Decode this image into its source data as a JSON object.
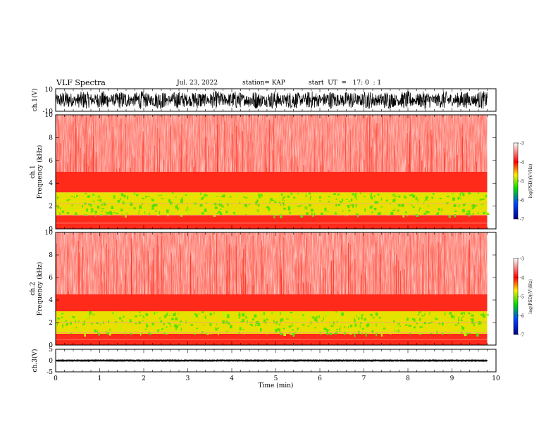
{
  "header": {
    "title": "VLF Spectra",
    "date": "Jul. 23, 2022",
    "station": "station= KAP",
    "start": "start  UT  =   17: 0  : 1"
  },
  "colors": {
    "waveform": "#000000",
    "spectrogram_low": "#ffffff",
    "spectrogram_mid": "#ff2a1a",
    "spectrogram_high": "#58e000",
    "colorbar_stops": [
      "#000088",
      "#0044ff",
      "#00dd00",
      "#ffee00",
      "#ff0000",
      "#ffffff"
    ]
  },
  "chart_data": [
    {
      "type": "line",
      "panel": "ch1-waveform",
      "ylabel": "ch.1(V)",
      "ylim": [
        -10,
        10
      ],
      "yticks": [
        "10",
        "-10"
      ],
      "xlim": [
        0,
        10
      ],
      "description_of_signal": "noisy waveform roughly between -8 and 8 V",
      "approx_range": [
        -8,
        8
      ]
    },
    {
      "type": "heatmap",
      "panel": "ch1-spectrogram",
      "ylabel": "ch.1\nFrequency (kHz)",
      "ylim": [
        0,
        10
      ],
      "yticks": [
        "0",
        "2",
        "4",
        "6",
        "8",
        "10"
      ],
      "xlim": [
        0,
        9.8
      ],
      "colorbar": {
        "label": "log(PSD)(V²/Hz)",
        "range": [
          -7,
          -3
        ],
        "ticks": [
          "-3",
          "-4",
          "-5",
          "-6",
          "-7"
        ]
      },
      "bands": [
        {
          "freq_khz": [
            0,
            1.2
          ],
          "level": -4.0
        },
        {
          "freq_khz": [
            1.2,
            3.2
          ],
          "level": -4.8
        },
        {
          "freq_khz": [
            3.2,
            5.0
          ],
          "level": -4.0
        },
        {
          "freq_khz": [
            5.0,
            10.0
          ],
          "level": -3.4
        }
      ],
      "lines_khz": [
        2.2,
        1.2,
        0.5
      ]
    },
    {
      "type": "heatmap",
      "panel": "ch2-spectrogram",
      "ylabel": "ch.2\nFrequency (kHz)",
      "ylim": [
        0,
        10
      ],
      "yticks": [
        "0",
        "2",
        "4",
        "6",
        "8",
        "10"
      ],
      "xlim": [
        0,
        9.8
      ],
      "colorbar": {
        "label": "log(PSD)(V²/Hz)",
        "range": [
          -7,
          -3
        ],
        "ticks": [
          "-3",
          "-4",
          "-5",
          "-6",
          "-7"
        ]
      },
      "bands": [
        {
          "freq_khz": [
            0,
            1.0
          ],
          "level": -4.0
        },
        {
          "freq_khz": [
            1.0,
            3.0
          ],
          "level": -4.8
        },
        {
          "freq_khz": [
            3.0,
            4.5
          ],
          "level": -4.0
        },
        {
          "freq_khz": [
            4.5,
            10.0
          ],
          "level": -3.4
        }
      ],
      "lines_khz": [
        2.0,
        1.1,
        0.5
      ]
    },
    {
      "type": "line",
      "panel": "ch3-waveform",
      "ylabel": "ch.3(V)",
      "ylim": [
        -5,
        5
      ],
      "yticks": [
        "5",
        "0",
        "-5"
      ],
      "xlim": [
        0,
        10
      ],
      "xlabel": "Time (min)",
      "xticks": [
        "0",
        "1",
        "2",
        "3",
        "4",
        "5",
        "6",
        "7",
        "8",
        "9",
        "10"
      ],
      "approx_range": [
        -0.5,
        0.5
      ]
    }
  ]
}
